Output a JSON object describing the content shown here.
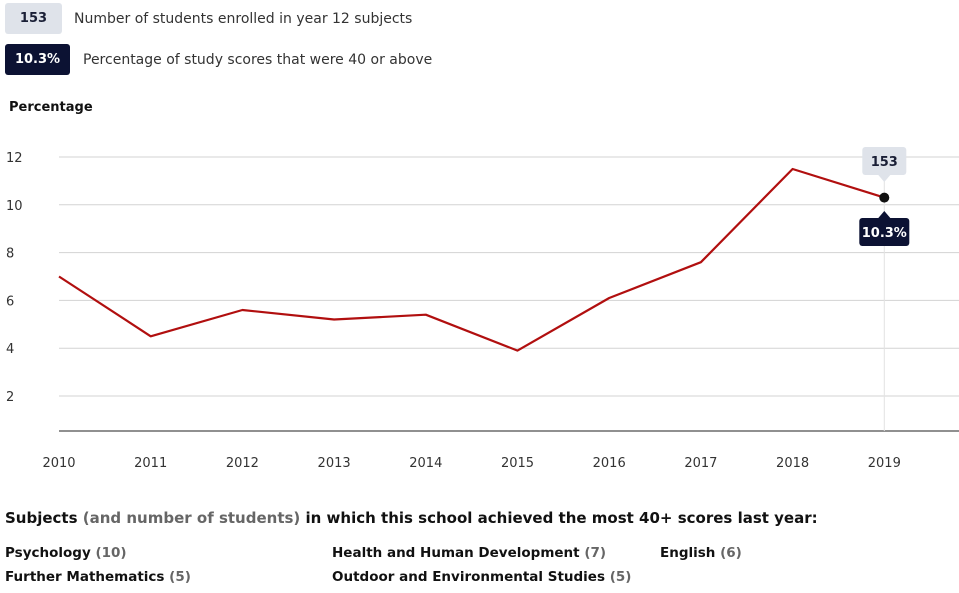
{
  "legend": {
    "students": {
      "value": "153",
      "label": "Number of students enrolled in year 12 subjects"
    },
    "percentage": {
      "value": "10.3%",
      "label": "Percentage of study scores that were 40 or above"
    }
  },
  "colors": {
    "line": "#b10f0f",
    "dark_badge": "#0c1233",
    "light_badge": "#dfe3ea"
  },
  "chart_data": {
    "type": "line",
    "ylabel": "Percentage",
    "x": [
      "2010",
      "2011",
      "2012",
      "2013",
      "2014",
      "2015",
      "2016",
      "2017",
      "2018",
      "2019"
    ],
    "series": [
      {
        "values": [
          7.0,
          4.5,
          5.6,
          5.2,
          5.4,
          3.9,
          6.1,
          7.6,
          11.5,
          10.3
        ]
      }
    ],
    "yticks": [
      2,
      4,
      6,
      8,
      10,
      12
    ],
    "ylim": [
      0.5,
      13
    ],
    "grid": true,
    "highlight": {
      "x": "2019",
      "top_label": "153",
      "bottom_label": "10.3%"
    }
  },
  "subjects": {
    "title_part1": "Subjects",
    "title_part2": "(and number of students)",
    "title_part3": "in which this school achieved the most 40+ scores last year:",
    "items": [
      {
        "name": "Psychology",
        "count": "(10)"
      },
      {
        "name": "Health and Human Development",
        "count": "(7)"
      },
      {
        "name": "English",
        "count": "(6)"
      },
      {
        "name": "Further Mathematics",
        "count": "(5)"
      },
      {
        "name": "Outdoor and Environmental Studies",
        "count": "(5)"
      }
    ]
  }
}
